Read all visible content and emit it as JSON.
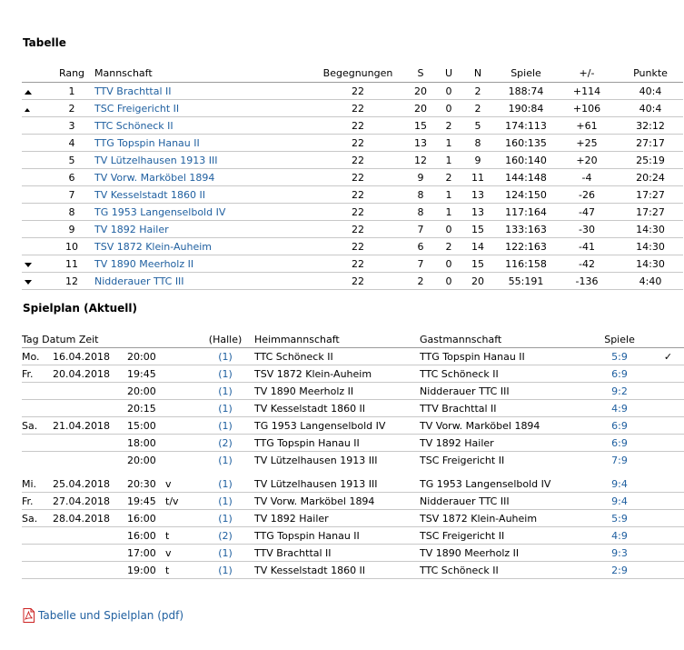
{
  "tabelle": {
    "heading": "Tabelle",
    "headers": [
      "Rang",
      "Mannschaft",
      "Begegnungen",
      "S",
      "U",
      "N",
      "Spiele",
      "+/-",
      "Punkte"
    ],
    "rows": [
      {
        "trend": "up",
        "rang": "1",
        "team": "TTV Brachttal II",
        "beg": "22",
        "s": "20",
        "u": "0",
        "n": "2",
        "spiele": "188:74",
        "diff": "+114",
        "punkte": "40:4"
      },
      {
        "trend": "up-small",
        "rang": "2",
        "team": "TSC Freigericht II",
        "beg": "22",
        "s": "20",
        "u": "0",
        "n": "2",
        "spiele": "190:84",
        "diff": "+106",
        "punkte": "40:4"
      },
      {
        "trend": "",
        "rang": "3",
        "team": "TTC Schöneck II",
        "beg": "22",
        "s": "15",
        "u": "2",
        "n": "5",
        "spiele": "174:113",
        "diff": "+61",
        "punkte": "32:12"
      },
      {
        "trend": "",
        "rang": "4",
        "team": "TTG Topspin Hanau II",
        "beg": "22",
        "s": "13",
        "u": "1",
        "n": "8",
        "spiele": "160:135",
        "diff": "+25",
        "punkte": "27:17"
      },
      {
        "trend": "",
        "rang": "5",
        "team": "TV Lützelhausen 1913 III",
        "beg": "22",
        "s": "12",
        "u": "1",
        "n": "9",
        "spiele": "160:140",
        "diff": "+20",
        "punkte": "25:19"
      },
      {
        "trend": "",
        "rang": "6",
        "team": "TV Vorw. Marköbel 1894",
        "beg": "22",
        "s": "9",
        "u": "2",
        "n": "11",
        "spiele": "144:148",
        "diff": "-4",
        "punkte": "20:24"
      },
      {
        "trend": "",
        "rang": "7",
        "team": "TV Kesselstadt 1860 II",
        "beg": "22",
        "s": "8",
        "u": "1",
        "n": "13",
        "spiele": "124:150",
        "diff": "-26",
        "punkte": "17:27"
      },
      {
        "trend": "",
        "rang": "8",
        "team": "TG 1953 Langenselbold IV",
        "beg": "22",
        "s": "8",
        "u": "1",
        "n": "13",
        "spiele": "117:164",
        "diff": "-47",
        "punkte": "17:27"
      },
      {
        "trend": "",
        "rang": "9",
        "team": "TV 1892 Hailer",
        "beg": "22",
        "s": "7",
        "u": "0",
        "n": "15",
        "spiele": "133:163",
        "diff": "-30",
        "punkte": "14:30"
      },
      {
        "trend": "",
        "rang": "10",
        "team": "TSV 1872 Klein-Auheim",
        "beg": "22",
        "s": "6",
        "u": "2",
        "n": "14",
        "spiele": "122:163",
        "diff": "-41",
        "punkte": "14:30"
      },
      {
        "trend": "down",
        "rang": "11",
        "team": "TV 1890 Meerholz II",
        "beg": "22",
        "s": "7",
        "u": "0",
        "n": "15",
        "spiele": "116:158",
        "diff": "-42",
        "punkte": "14:30"
      },
      {
        "trend": "down",
        "rang": "12",
        "team": "Nidderauer TTC III",
        "beg": "22",
        "s": "2",
        "u": "0",
        "n": "20",
        "spiele": "55:191",
        "diff": "-136",
        "punkte": "4:40"
      }
    ]
  },
  "spielplan": {
    "heading": "Spielplan (Aktuell)",
    "headers": {
      "tag_datum_zeit": "Tag Datum Zeit",
      "halle": "(Halle)",
      "heim": "Heimmannschaft",
      "gast": "Gastmannschaft",
      "spiele": "Spiele"
    },
    "rows": [
      {
        "tag": "Mo.",
        "datum": "16.04.2018",
        "zeit": "20:00",
        "flag": "",
        "halle": "(1)",
        "heim": "TTC Schöneck II",
        "gast": "TTG Topspin Hanau II",
        "erg": "5:9",
        "check": "✓",
        "line": true
      },
      {
        "tag": "Fr.",
        "datum": "20.04.2018",
        "zeit": "19:45",
        "flag": "",
        "halle": "(1)",
        "heim": "TSV 1872 Klein-Auheim",
        "gast": "TTC Schöneck II",
        "erg": "6:9",
        "check": "",
        "line": true
      },
      {
        "tag": "",
        "datum": "",
        "zeit": "20:00",
        "flag": "",
        "halle": "(1)",
        "heim": "TV 1890 Meerholz II",
        "gast": "Nidderauer TTC III",
        "erg": "9:2",
        "check": "",
        "line": true
      },
      {
        "tag": "",
        "datum": "",
        "zeit": "20:15",
        "flag": "",
        "halle": "(1)",
        "heim": "TV Kesselstadt 1860 II",
        "gast": "TTV Brachttal II",
        "erg": "4:9",
        "check": "",
        "line": true
      },
      {
        "tag": "Sa.",
        "datum": "21.04.2018",
        "zeit": "15:00",
        "flag": "",
        "halle": "(1)",
        "heim": "TG 1953 Langenselbold IV",
        "gast": "TV Vorw. Marköbel 1894",
        "erg": "6:9",
        "check": "",
        "line": true
      },
      {
        "tag": "",
        "datum": "",
        "zeit": "18:00",
        "flag": "",
        "halle": "(2)",
        "heim": "TTG Topspin Hanau II",
        "gast": "TV 1892 Hailer",
        "erg": "6:9",
        "check": "",
        "line": true
      },
      {
        "tag": "",
        "datum": "",
        "zeit": "20:00",
        "flag": "",
        "halle": "(1)",
        "heim": "TV Lützelhausen 1913 III",
        "gast": "TSC Freigericht II",
        "erg": "7:9",
        "check": "",
        "line": false
      },
      {
        "tag": "Mi.",
        "datum": "25.04.2018",
        "zeit": "20:30",
        "flag": "v",
        "halle": "(1)",
        "heim": "TV Lützelhausen 1913 III",
        "gast": "TG 1953 Langenselbold IV",
        "erg": "9:4",
        "check": "",
        "line": true
      },
      {
        "tag": "Fr.",
        "datum": "27.04.2018",
        "zeit": "19:45",
        "flag": "t/v",
        "halle": "(1)",
        "heim": "TV Vorw. Marköbel 1894",
        "gast": "Nidderauer TTC III",
        "erg": "9:4",
        "check": "",
        "line": true
      },
      {
        "tag": "Sa.",
        "datum": "28.04.2018",
        "zeit": "16:00",
        "flag": "",
        "halle": "(1)",
        "heim": "TV 1892 Hailer",
        "gast": "TSV 1872 Klein-Auheim",
        "erg": "5:9",
        "check": "",
        "line": true
      },
      {
        "tag": "",
        "datum": "",
        "zeit": "16:00",
        "flag": "t",
        "halle": "(2)",
        "heim": "TTG Topspin Hanau II",
        "gast": "TSC Freigericht II",
        "erg": "4:9",
        "check": "",
        "line": true
      },
      {
        "tag": "",
        "datum": "",
        "zeit": "17:00",
        "flag": "v",
        "halle": "(1)",
        "heim": "TTV Brachttal II",
        "gast": "TV 1890 Meerholz II",
        "erg": "9:3",
        "check": "",
        "line": true
      },
      {
        "tag": "",
        "datum": "",
        "zeit": "19:00",
        "flag": "t",
        "halle": "(1)",
        "heim": "TV Kesselstadt 1860 II",
        "gast": "TTC Schöneck II",
        "erg": "2:9",
        "check": "",
        "line": true
      }
    ]
  },
  "pdf_link": {
    "label": "Tabelle und Spielplan (pdf)",
    "icon": "pdf-icon"
  },
  "colors": {
    "link": "#2060a0",
    "icon_red": "#cc2222"
  }
}
